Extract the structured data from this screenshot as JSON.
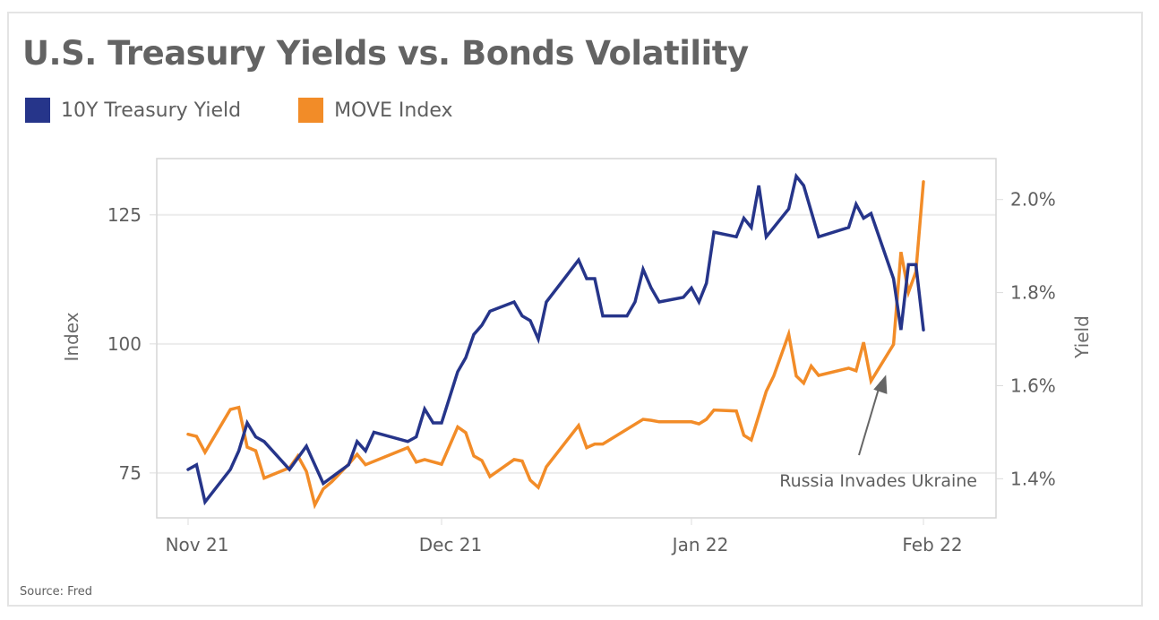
{
  "title": "U.S. Treasury Yields vs. Bonds Volatility",
  "source": "Source: Fred",
  "legend": [
    {
      "label": "10Y Treasury Yield",
      "color": "#26358a"
    },
    {
      "label": "MOVE Index",
      "color": "#f28c28"
    }
  ],
  "chart_data": {
    "type": "line",
    "title": "U.S. Treasury Yields vs. Bonds Volatility",
    "xlabel": "",
    "ylabel": "Index",
    "y2label": "Yield",
    "x_ticks": [
      {
        "label": "Nov 21",
        "date": "2021-11-01"
      },
      {
        "label": "Dec 21",
        "date": "2021-12-01"
      },
      {
        "label": "Jan 22",
        "date": "2022-01-01"
      },
      {
        "label": "Feb 22",
        "date": "2022-02-01"
      }
    ],
    "xlim": [
      "2021-10-25",
      "2022-02-10"
    ],
    "ylim": [
      66.3,
      135.9
    ],
    "y_ticks": [
      75,
      100,
      125
    ],
    "y2lim": [
      1.316,
      2.088
    ],
    "y2_ticks": [
      {
        "value": 1.4,
        "label": "1.4%"
      },
      {
        "value": 1.6,
        "label": "1.6%"
      },
      {
        "value": 1.8,
        "label": "1.8%"
      },
      {
        "value": 2.0,
        "label": "2.0%"
      }
    ],
    "grid": "horizontal",
    "legend_position": "top-left",
    "series": [
      {
        "name": "10Y Treasury Yield",
        "axis": "right",
        "color": "#26358a",
        "points": [
          [
            "2021-11-01",
            1.42
          ],
          [
            "2021-11-02",
            1.43
          ],
          [
            "2021-11-03",
            1.35
          ],
          [
            "2021-11-06",
            1.42
          ],
          [
            "2021-11-07",
            1.46
          ],
          [
            "2021-11-08",
            1.52
          ],
          [
            "2021-11-09",
            1.49
          ],
          [
            "2021-11-10",
            1.48
          ],
          [
            "2021-11-13",
            1.42
          ],
          [
            "2021-11-15",
            1.47
          ],
          [
            "2021-11-17",
            1.39
          ],
          [
            "2021-11-20",
            1.43
          ],
          [
            "2021-11-21",
            1.48
          ],
          [
            "2021-11-22",
            1.46
          ],
          [
            "2021-11-23",
            1.5
          ],
          [
            "2021-11-27",
            1.48
          ],
          [
            "2021-11-28",
            1.49
          ],
          [
            "2021-11-29",
            1.55
          ],
          [
            "2021-11-30",
            1.52
          ],
          [
            "2021-12-01",
            1.52
          ],
          [
            "2021-12-03",
            1.63
          ],
          [
            "2021-12-04",
            1.66
          ],
          [
            "2021-12-05",
            1.71
          ],
          [
            "2021-12-06",
            1.73
          ],
          [
            "2021-12-07",
            1.76
          ],
          [
            "2021-12-10",
            1.78
          ],
          [
            "2021-12-11",
            1.75
          ],
          [
            "2021-12-12",
            1.74
          ],
          [
            "2021-12-13",
            1.7
          ],
          [
            "2021-12-14",
            1.78
          ],
          [
            "2021-12-18",
            1.87
          ],
          [
            "2021-12-19",
            1.83
          ],
          [
            "2021-12-20",
            1.83
          ],
          [
            "2021-12-21",
            1.75
          ],
          [
            "2021-12-24",
            1.75
          ],
          [
            "2021-12-25",
            1.78
          ],
          [
            "2021-12-26",
            1.85
          ],
          [
            "2021-12-27",
            1.81
          ],
          [
            "2021-12-28",
            1.78
          ],
          [
            "2021-12-31",
            1.79
          ],
          [
            "2022-01-01",
            1.81
          ],
          [
            "2022-01-02",
            1.78
          ],
          [
            "2022-01-03",
            1.82
          ],
          [
            "2022-01-04",
            1.93
          ],
          [
            "2022-01-07",
            1.92
          ],
          [
            "2022-01-08",
            1.96
          ],
          [
            "2022-01-09",
            1.94
          ],
          [
            "2022-01-10",
            2.03
          ],
          [
            "2022-01-11",
            1.92
          ],
          [
            "2022-01-14",
            1.98
          ],
          [
            "2022-01-15",
            2.05
          ],
          [
            "2022-01-16",
            2.03
          ],
          [
            "2022-01-18",
            1.92
          ],
          [
            "2022-01-22",
            1.94
          ],
          [
            "2022-01-23",
            1.99
          ],
          [
            "2022-01-24",
            1.96
          ],
          [
            "2022-01-25",
            1.97
          ],
          [
            "2022-01-28",
            1.83
          ],
          [
            "2022-01-29",
            1.72
          ],
          [
            "2022-01-30",
            1.86
          ],
          [
            "2022-01-31",
            1.86
          ],
          [
            "2022-02-01",
            1.72
          ]
        ]
      },
      {
        "name": "MOVE Index",
        "axis": "left",
        "color": "#f28c28",
        "points": [
          [
            "2021-11-01",
            82.5
          ],
          [
            "2021-11-02",
            82.1
          ],
          [
            "2021-11-03",
            79.0
          ],
          [
            "2021-11-06",
            87.3
          ],
          [
            "2021-11-07",
            87.7
          ],
          [
            "2021-11-08",
            80.0
          ],
          [
            "2021-11-09",
            79.3
          ],
          [
            "2021-11-10",
            74.0
          ],
          [
            "2021-11-13",
            76.0
          ],
          [
            "2021-11-14",
            78.3
          ],
          [
            "2021-11-15",
            75.3
          ],
          [
            "2021-11-16",
            68.8
          ],
          [
            "2021-11-17",
            71.9
          ],
          [
            "2021-11-18",
            73.3
          ],
          [
            "2021-11-20",
            76.7
          ],
          [
            "2021-11-21",
            78.6
          ],
          [
            "2021-11-22",
            76.6
          ],
          [
            "2021-11-27",
            79.9
          ],
          [
            "2021-11-28",
            77.1
          ],
          [
            "2021-11-29",
            77.6
          ],
          [
            "2021-12-01",
            76.7
          ],
          [
            "2021-12-03",
            83.9
          ],
          [
            "2021-12-04",
            82.8
          ],
          [
            "2021-12-05",
            78.3
          ],
          [
            "2021-12-06",
            77.4
          ],
          [
            "2021-12-07",
            74.3
          ],
          [
            "2021-12-10",
            77.6
          ],
          [
            "2021-12-11",
            77.3
          ],
          [
            "2021-12-12",
            73.6
          ],
          [
            "2021-12-13",
            72.2
          ],
          [
            "2021-12-14",
            76.2
          ],
          [
            "2021-12-18",
            84.2
          ],
          [
            "2021-12-19",
            79.9
          ],
          [
            "2021-12-20",
            80.6
          ],
          [
            "2021-12-21",
            80.6
          ],
          [
            "2021-12-26",
            85.4
          ],
          [
            "2021-12-27",
            85.2
          ],
          [
            "2021-12-28",
            84.9
          ],
          [
            "2022-01-01",
            84.9
          ],
          [
            "2022-01-02",
            84.5
          ],
          [
            "2022-01-03",
            85.4
          ],
          [
            "2022-01-04",
            87.2
          ],
          [
            "2022-01-07",
            87.0
          ],
          [
            "2022-01-08",
            82.3
          ],
          [
            "2022-01-09",
            81.4
          ],
          [
            "2022-01-11",
            90.8
          ],
          [
            "2022-01-12",
            93.8
          ],
          [
            "2022-01-14",
            101.9
          ],
          [
            "2022-01-15",
            93.8
          ],
          [
            "2022-01-16",
            92.4
          ],
          [
            "2022-01-17",
            95.7
          ],
          [
            "2022-01-18",
            93.9
          ],
          [
            "2022-01-22",
            95.3
          ],
          [
            "2022-01-23",
            94.8
          ],
          [
            "2022-01-24",
            100.3
          ],
          [
            "2022-01-25",
            92.8
          ],
          [
            "2022-01-28",
            99.9
          ],
          [
            "2022-01-29",
            117.8
          ],
          [
            "2022-01-30",
            110.0
          ],
          [
            "2022-01-31",
            114.0
          ],
          [
            "2022-02-01",
            131.4
          ]
        ]
      }
    ],
    "annotations": [
      {
        "text": "Russia Invades Ukraine",
        "arrow_to": {
          "date": "2022-01-27",
          "axis": "left",
          "value": 94.0
        }
      }
    ]
  }
}
